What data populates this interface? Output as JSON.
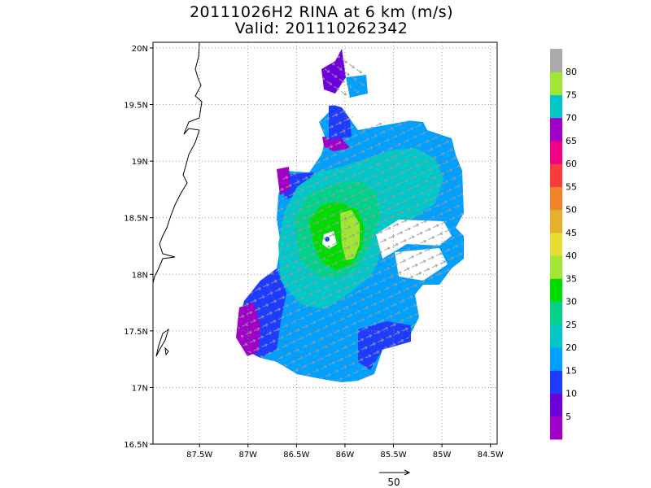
{
  "title_line1": "20111026H2 RINA at 6 km (m/s)",
  "title_line2": "Valid: 201110262342",
  "chart_data": {
    "type": "heatmap",
    "title": "20111026H2 RINA at 6 km (m/s)",
    "subtitle": "Valid: 201110262342",
    "x_ticks": [
      {
        "value": -87.5,
        "label": "87.5W"
      },
      {
        "value": -87.0,
        "label": "87W"
      },
      {
        "value": -86.5,
        "label": "86.5W"
      },
      {
        "value": -86.0,
        "label": "86W"
      },
      {
        "value": -85.5,
        "label": "85.5W"
      },
      {
        "value": -85.0,
        "label": "85W"
      },
      {
        "value": -84.5,
        "label": "84.5W"
      }
    ],
    "y_ticks": [
      {
        "value": 16.5,
        "label": "16.5N"
      },
      {
        "value": 17.0,
        "label": "17N"
      },
      {
        "value": 17.5,
        "label": "17.5N"
      },
      {
        "value": 18.0,
        "label": "18N"
      },
      {
        "value": 18.5,
        "label": "18.5N"
      },
      {
        "value": 19.0,
        "label": "19N"
      },
      {
        "value": 19.5,
        "label": "19.5N"
      },
      {
        "value": 20.0,
        "label": "20N"
      }
    ],
    "xlim": [
      -87.98,
      -84.43
    ],
    "ylim": [
      16.5,
      20.05
    ],
    "grid": true,
    "colorbar": {
      "boundaries": [
        5,
        10,
        15,
        20,
        25,
        30,
        35,
        40,
        45,
        50,
        55,
        60,
        65,
        70,
        75,
        80
      ],
      "labels": [
        "5",
        "10",
        "15",
        "20",
        "25",
        "30",
        "35",
        "40",
        "45",
        "50",
        "55",
        "60",
        "65",
        "70",
        "75",
        "80"
      ],
      "colors": [
        "#a000c8",
        "#6e00dc",
        "#1e3cff",
        "#00a0ff",
        "#00c8c8",
        "#00d28c",
        "#00dc00",
        "#a0e632",
        "#e6dc32",
        "#e6af2d",
        "#f08228",
        "#fa3c3c",
        "#f00082",
        "#a000c8",
        "#00c8c8",
        "#a0e632",
        "#aaaaaa"
      ]
    },
    "storm_center": {
      "lon": -86.02,
      "lat": 18.25
    },
    "reference_vector": {
      "label": "50",
      "magnitude": 50
    }
  }
}
